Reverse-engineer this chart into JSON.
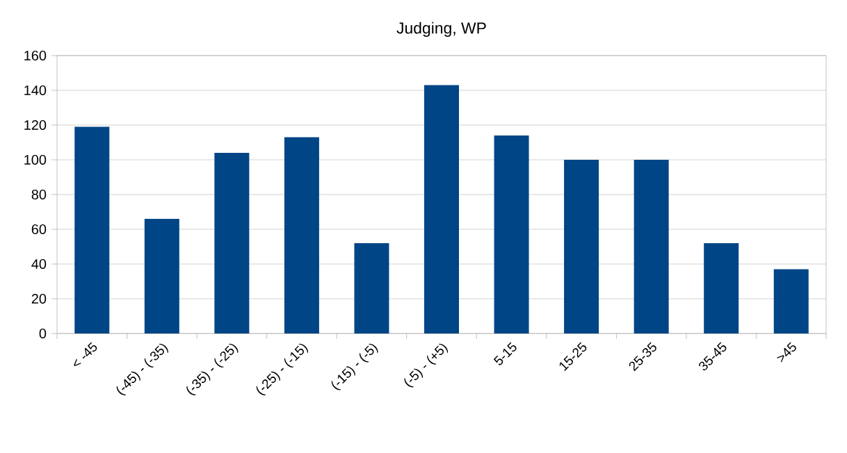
{
  "chart_data": {
    "type": "bar",
    "title": "Judging, WP",
    "categories": [
      "< -45",
      "(-45) - (-35)",
      "(-35) - (-25)",
      "(-25) - (-15)",
      "(-15) - (-5)",
      "(-5) - (+5)",
      "5-15",
      "15-25",
      "25-35",
      "35-45",
      ">45"
    ],
    "values": [
      119,
      66,
      104,
      113,
      52,
      143,
      114,
      100,
      100,
      52,
      37
    ],
    "color": "#004586",
    "ylim": [
      0,
      160
    ],
    "yticks": [
      0,
      20,
      40,
      60,
      80,
      100,
      120,
      140,
      160
    ],
    "grid": "y"
  }
}
